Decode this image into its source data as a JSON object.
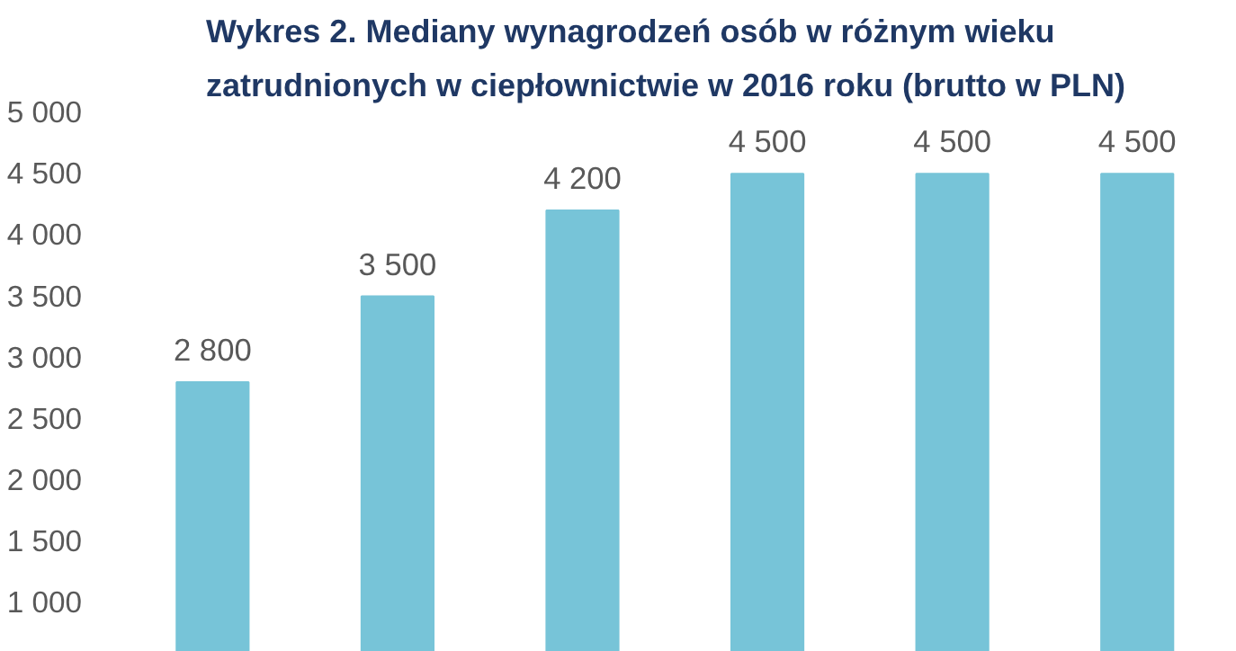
{
  "chart_data": {
    "type": "bar",
    "title": "Wykres 2. Mediany wynagrodzeń osób w różnym wieku\nzatrudnionych w ciepłownictwie w 2016 roku (brutto w PLN)",
    "categories": [
      null,
      null,
      null,
      null,
      null,
      null
    ],
    "values": [
      2800,
      3500,
      4200,
      4500,
      4500,
      4500
    ],
    "value_labels": [
      "2 800",
      "3 500",
      "4 200",
      "4 500",
      "4 500",
      "4 500"
    ],
    "color": "#77c4d8",
    "ylim": [
      600,
      5000
    ],
    "yticks": [
      {
        "value": 1000,
        "label": "1 000"
      },
      {
        "value": 1500,
        "label": "1 500"
      },
      {
        "value": 2000,
        "label": "2 000"
      },
      {
        "value": 2500,
        "label": "2 500"
      },
      {
        "value": 3000,
        "label": "3 000"
      },
      {
        "value": 3500,
        "label": "3 500"
      },
      {
        "value": 4000,
        "label": "4 000"
      },
      {
        "value": 4500,
        "label": "4 500"
      },
      {
        "value": 5000,
        "label": "5 000"
      }
    ],
    "grid": false,
    "tick_labels": "y"
  }
}
